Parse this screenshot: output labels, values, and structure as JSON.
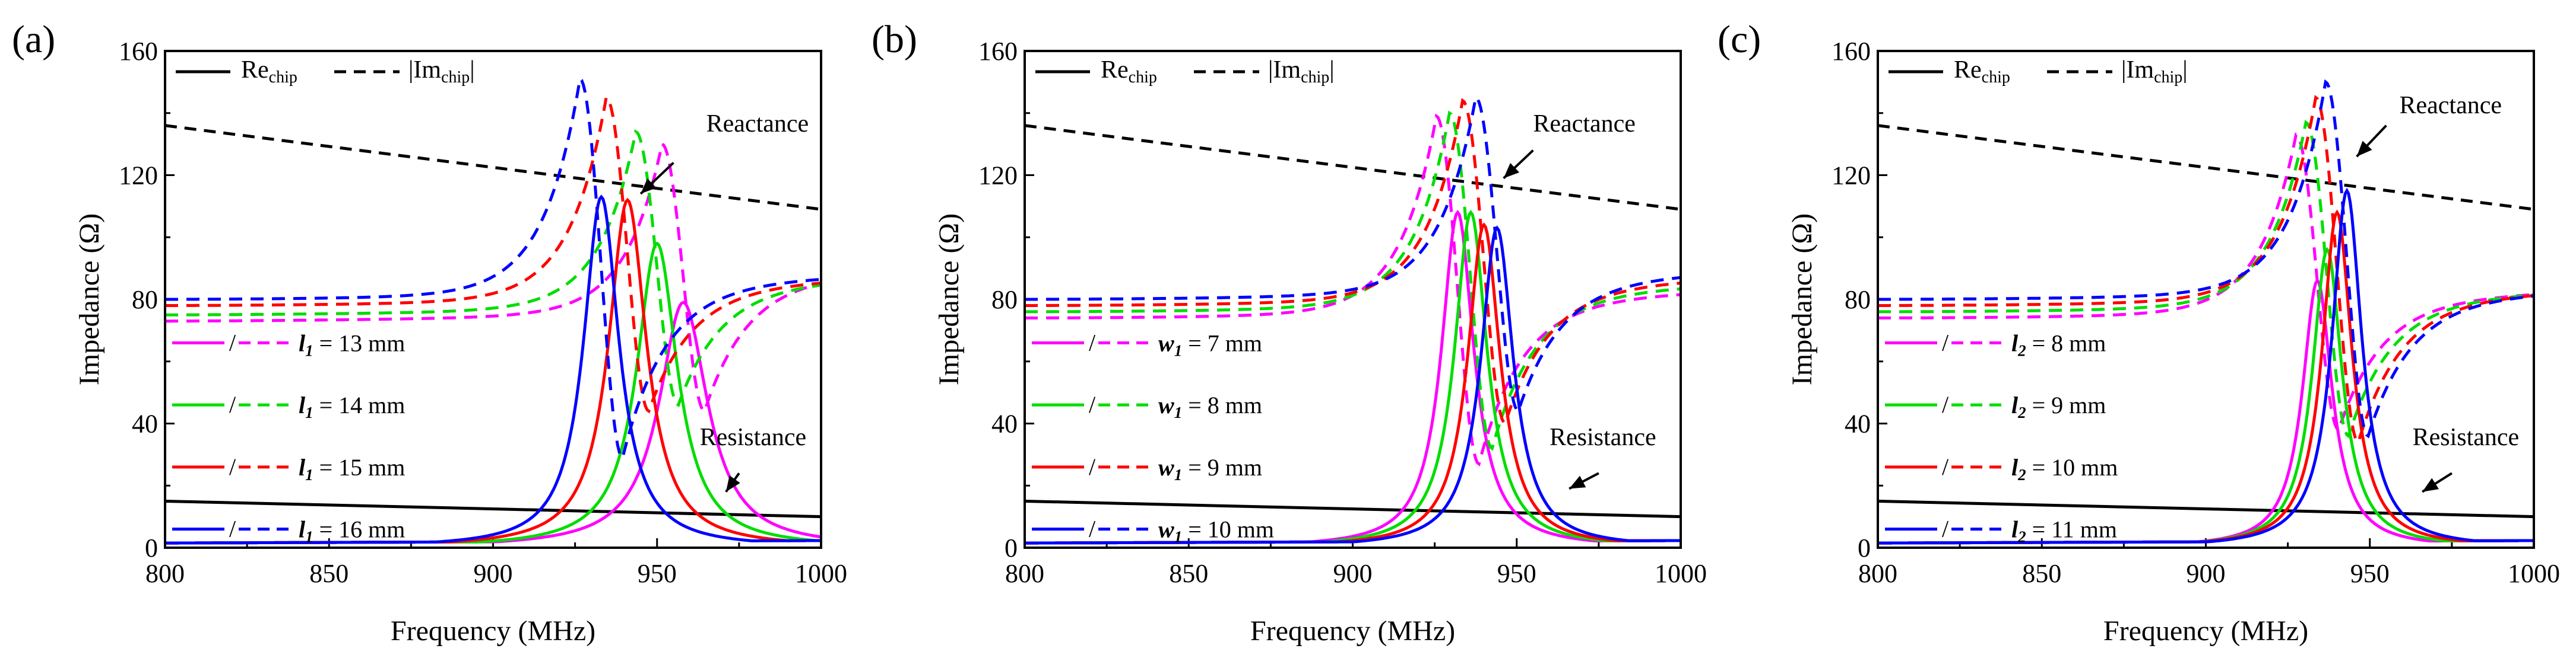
{
  "chart_data": [
    {
      "type": "line",
      "panel_label": "(a)",
      "xlabel": "Frequency (MHz)",
      "ylabel": "Impedance (Ω)",
      "xlim": [
        800,
        1000
      ],
      "ylim": [
        0,
        160
      ],
      "xticks": [
        800,
        850,
        900,
        950,
        1000
      ],
      "yticks": [
        0,
        40,
        80,
        120,
        160
      ],
      "legend_chip": {
        "re": "Re",
        "re_sub": "chip",
        "im_pre": "|Im",
        "im_sub": "chip",
        "im_post": "|"
      },
      "legend_entries": [
        {
          "var": "l",
          "sub": "1",
          "text": "= 13 mm",
          "color": "#ff00ff"
        },
        {
          "var": "l",
          "sub": "1",
          "text": "= 14 mm",
          "color": "#00dd00"
        },
        {
          "var": "l",
          "sub": "1",
          "text": "= 15 mm",
          "color": "#ff0000"
        },
        {
          "var": "l",
          "sub": "1",
          "text": "= 16 mm",
          "color": "#0000ff"
        }
      ],
      "annotations": [
        {
          "text": "Reactance",
          "x": 965,
          "y": 134,
          "ax": 955,
          "ay": 124,
          "hx": 945,
          "hy": 114
        },
        {
          "text": "Resistance",
          "x": 963,
          "y": 33,
          "ax": 975,
          "ay": 24,
          "hx": 971,
          "hy": 18
        }
      ],
      "chip": {
        "re": [
          15,
          10
        ],
        "im": [
          136,
          109
        ]
      },
      "curves": [
        {
          "name": "l1 = 13 mm",
          "color": "#ff00ff",
          "f0": 958,
          "rpk": 79,
          "rw": 9,
          "xpk": 130,
          "xmin": 44,
          "base": 73,
          "ton": 88
        },
        {
          "name": "l1 = 14 mm",
          "color": "#00dd00",
          "f0": 950,
          "rpk": 98,
          "rw": 7.5,
          "xpk": 134,
          "xmin": 46,
          "base": 75,
          "ton": 86
        },
        {
          "name": "l1 = 15 mm",
          "color": "#ff0000",
          "f0": 941,
          "rpk": 112,
          "rw": 7,
          "xpk": 145,
          "xmin": 44,
          "base": 78,
          "ton": 86
        },
        {
          "name": "l1 = 16 mm",
          "color": "#0000ff",
          "f0": 933,
          "rpk": 113,
          "rw": 6.5,
          "xpk": 151,
          "xmin": 29,
          "base": 80,
          "ton": 87
        }
      ]
    },
    {
      "type": "line",
      "panel_label": "(b)",
      "xlabel": "Frequency (MHz)",
      "ylabel": "Impedance (Ω)",
      "xlim": [
        800,
        1000
      ],
      "ylim": [
        0,
        160
      ],
      "xticks": [
        800,
        850,
        900,
        950,
        1000
      ],
      "yticks": [
        0,
        40,
        80,
        120,
        160
      ],
      "legend_chip": {
        "re": "Re",
        "re_sub": "chip",
        "im_pre": "|Im",
        "im_sub": "chip",
        "im_post": "|"
      },
      "legend_entries": [
        {
          "var": "w",
          "sub": "1",
          "text": "= 7 mm",
          "color": "#ff00ff"
        },
        {
          "var": "w",
          "sub": "1",
          "text": "= 8 mm",
          "color": "#00dd00"
        },
        {
          "var": "w",
          "sub": "1",
          "text": "= 9 mm",
          "color": "#ff0000"
        },
        {
          "var": "w",
          "sub": "1",
          "text": "= 10 mm",
          "color": "#0000ff"
        }
      ],
      "annotations": [
        {
          "text": "Reactance",
          "x": 955,
          "y": 134,
          "ax": 955,
          "ay": 128,
          "hx": 946,
          "hy": 119
        },
        {
          "text": "Resistance",
          "x": 960,
          "y": 33,
          "ax": 975,
          "ay": 24,
          "hx": 966,
          "hy": 19
        }
      ],
      "chip": {
        "re": [
          15,
          10
        ],
        "im": [
          136,
          109
        ]
      },
      "curves": [
        {
          "name": "w1 = 7 mm",
          "color": "#ff00ff",
          "f0": 932,
          "rpk": 108,
          "rw": 6,
          "xpk": 139,
          "xmin": 27,
          "base": 74,
          "ton": 82
        },
        {
          "name": "w1 = 8 mm",
          "color": "#00dd00",
          "f0": 936,
          "rpk": 108,
          "rw": 6,
          "xpk": 140,
          "xmin": 32,
          "base": 76,
          "ton": 84
        },
        {
          "name": "w1 = 9 mm",
          "color": "#ff0000",
          "f0": 940,
          "rpk": 104,
          "rw": 6,
          "xpk": 144,
          "xmin": 40,
          "base": 78,
          "ton": 86
        },
        {
          "name": "w1 = 10 mm",
          "color": "#0000ff",
          "f0": 944,
          "rpk": 103,
          "rw": 6,
          "xpk": 145,
          "xmin": 44,
          "base": 80,
          "ton": 88
        }
      ]
    },
    {
      "type": "line",
      "panel_label": "(c)",
      "xlabel": "Frequency (MHz)",
      "ylabel": "Impedance (Ω)",
      "xlim": [
        800,
        1000
      ],
      "ylim": [
        0,
        160
      ],
      "xticks": [
        800,
        850,
        900,
        950,
        1000
      ],
      "yticks": [
        0,
        40,
        80,
        120,
        160
      ],
      "legend_chip": {
        "re": "Re",
        "re_sub": "chip",
        "im_pre": "|Im",
        "im_sub": "chip",
        "im_post": "|"
      },
      "legend_entries": [
        {
          "var": "l",
          "sub": "2",
          "text": "= 8 mm",
          "color": "#ff00ff"
        },
        {
          "var": "l",
          "sub": "2",
          "text": "= 9 mm",
          "color": "#00dd00"
        },
        {
          "var": "l",
          "sub": "2",
          "text": "= 10 mm",
          "color": "#ff0000"
        },
        {
          "var": "l",
          "sub": "2",
          "text": "= 11 mm",
          "color": "#0000ff"
        }
      ],
      "annotations": [
        {
          "text": "Reactance",
          "x": 959,
          "y": 140,
          "ax": 955,
          "ay": 136,
          "hx": 946,
          "hy": 126
        },
        {
          "text": "Resistance",
          "x": 963,
          "y": 33,
          "ax": 975,
          "ay": 24,
          "hx": 966,
          "hy": 18
        }
      ],
      "chip": {
        "re": [
          15,
          10
        ],
        "im": [
          136,
          109
        ]
      },
      "curves": [
        {
          "name": "l2 = 8 mm",
          "color": "#ff00ff",
          "f0": 934,
          "rpk": 86,
          "rw": 5.5,
          "xpk": 133,
          "xmin": 38,
          "base": 74,
          "ton": 82
        },
        {
          "name": "l2 = 9 mm",
          "color": "#00dd00",
          "f0": 937,
          "rpk": 96,
          "rw": 5.5,
          "xpk": 137,
          "xmin": 36,
          "base": 76,
          "ton": 82
        },
        {
          "name": "l2 = 10 mm",
          "color": "#ff0000",
          "f0": 940,
          "rpk": 108,
          "rw": 5.5,
          "xpk": 145,
          "xmin": 34,
          "base": 78,
          "ton": 82
        },
        {
          "name": "l2 = 11 mm",
          "color": "#0000ff",
          "f0": 943,
          "rpk": 115,
          "rw": 5.5,
          "xpk": 150,
          "xmin": 36,
          "base": 80,
          "ton": 82
        }
      ]
    }
  ]
}
